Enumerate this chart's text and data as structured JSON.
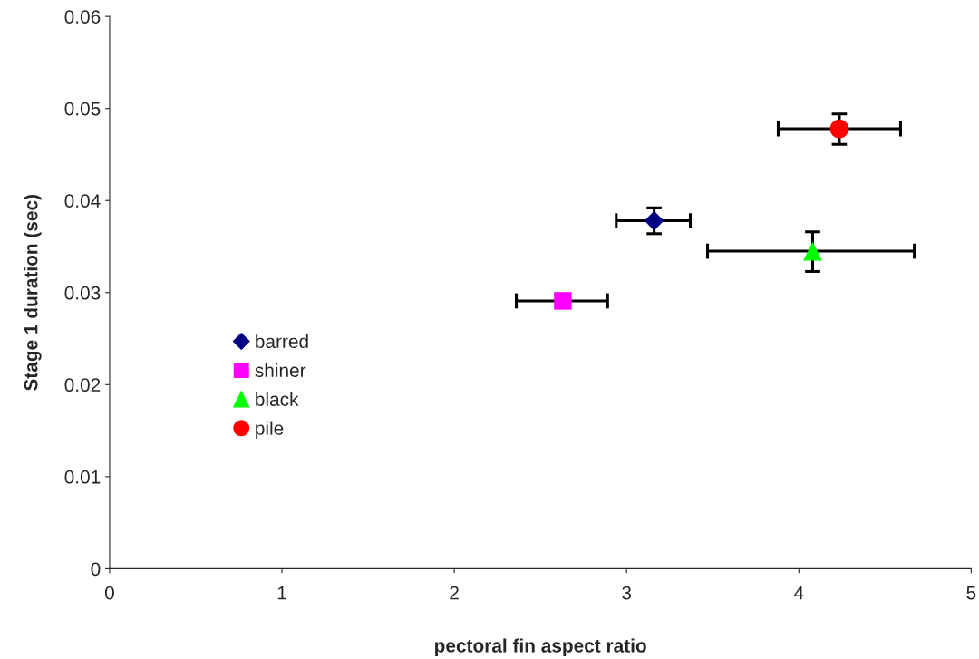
{
  "chart_data": {
    "type": "scatter",
    "xlabel": "pectoral fin aspect ratio",
    "ylabel": "Stage 1 duration (sec)",
    "xlim": [
      0,
      5
    ],
    "xticks": [
      0,
      1,
      2,
      3,
      4,
      5
    ],
    "ylim": [
      0,
      0.06
    ],
    "yticks": [
      0,
      0.01,
      0.02,
      0.03,
      0.04,
      0.05,
      0.06
    ],
    "grid": false,
    "legend": "left",
    "series": [
      {
        "name": "barred",
        "color": "#000080",
        "marker": "diamond",
        "x": [
          3.16
        ],
        "values": [
          0.0378
        ],
        "errors": [
          [
            0.0364,
            0.0392
          ]
        ],
        "xerrors": [
          [
            2.94,
            3.37
          ]
        ]
      },
      {
        "name": "shiner",
        "color": "#ff00ff",
        "marker": "square",
        "x": [
          2.63
        ],
        "values": [
          0.0291
        ],
        "xerrors": [
          [
            2.36,
            2.89
          ]
        ]
      },
      {
        "name": "black",
        "color": "#00ff00",
        "marker": "triangle",
        "x": [
          4.08
        ],
        "values": [
          0.0345
        ],
        "errors": [
          [
            0.0323,
            0.0366
          ]
        ],
        "xerrors": [
          [
            3.47,
            4.67
          ]
        ]
      },
      {
        "name": "pile",
        "color": "#ff0000",
        "marker": "circle",
        "x": [
          4.235
        ],
        "values": [
          0.0478
        ],
        "errors": [
          [
            0.0461,
            0.0494
          ]
        ],
        "xerrors": [
          [
            3.88,
            4.59
          ]
        ]
      }
    ]
  }
}
